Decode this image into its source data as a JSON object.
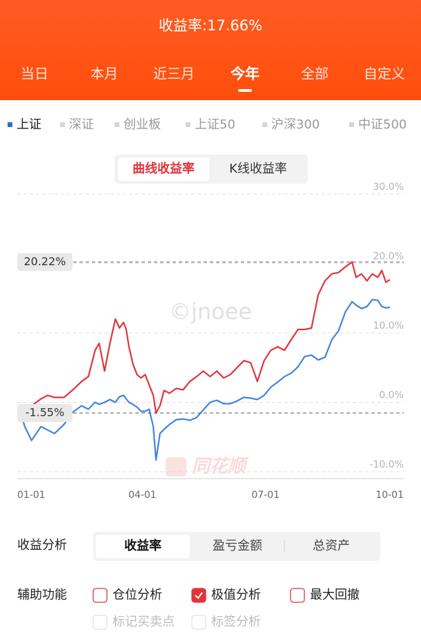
{
  "header": {
    "title": "收益率:17.66%",
    "tabs": [
      "当日",
      "本月",
      "近三月",
      "今年",
      "全部",
      "自定义"
    ],
    "active_tab": 3
  },
  "indices": {
    "items": [
      "上证",
      "深证",
      "创业板",
      "上证50",
      "沪深300",
      "中证500"
    ],
    "active": 0,
    "active_color": "#2b6fd8"
  },
  "chart_mode": {
    "options": [
      "曲线收益率",
      "K线收益率"
    ],
    "active": 0
  },
  "chart_data": {
    "type": "line",
    "x": [
      0,
      3,
      8,
      15,
      20,
      25,
      32,
      38,
      45,
      50,
      55,
      58,
      62,
      66,
      70,
      73,
      76,
      78,
      80,
      83,
      86,
      89,
      92,
      95,
      98,
      100,
      103,
      106,
      110,
      115,
      120,
      125,
      130,
      135,
      140,
      145,
      150,
      155,
      160,
      165,
      170,
      175,
      180,
      185,
      190,
      195,
      200,
      205,
      210,
      215,
      220,
      225,
      230,
      235,
      240,
      245,
      248,
      252,
      256,
      260,
      264,
      267,
      270,
      273
    ],
    "series": [
      {
        "color": "#e0333a",
        "values": [
          -0.8,
          -1.5,
          -0.5,
          0.5,
          1.0,
          0.7,
          0.7,
          1.7,
          3.0,
          3.7,
          7.5,
          8.5,
          4.5,
          8.5,
          12.0,
          10.7,
          11.5,
          10.5,
          8.0,
          5.5,
          4.0,
          3.5,
          4.0,
          2.5,
          1.0,
          -1.55,
          -0.5,
          1.7,
          1.3,
          2.0,
          1.8,
          3.0,
          3.7,
          4.5,
          3.7,
          4.5,
          3.5,
          4.0,
          5.0,
          6.0,
          5.7,
          3.0,
          6.0,
          7.5,
          8.0,
          7.5,
          9.0,
          10.5,
          10.5,
          10.7,
          15.5,
          17.5,
          18.5,
          18.7,
          19.5,
          20.22,
          18.0,
          18.5,
          17.5,
          18.5,
          18.0,
          19.0,
          17.3,
          17.66
        ]
      },
      {
        "color": "#3f83de",
        "values": [
          -1.5,
          -3.5,
          -5.5,
          -3.5,
          -4.0,
          -4.5,
          -3.2,
          -1.5,
          -0.5,
          -1.0,
          0.0,
          -0.3,
          0.0,
          0.4,
          0.0,
          0.8,
          1.0,
          0.5,
          0.0,
          -0.3,
          -0.7,
          -1.3,
          -1.3,
          -1.0,
          -3.5,
          -8.3,
          -4.5,
          -3.9,
          -3.2,
          -2.5,
          -2.4,
          -2.6,
          -2.2,
          -1.1,
          0.0,
          0.3,
          -0.2,
          -0.2,
          0.2,
          0.7,
          0.6,
          0.4,
          1.0,
          2.2,
          2.9,
          3.7,
          4.2,
          5.1,
          6.6,
          6.8,
          6.1,
          6.5,
          9.0,
          10.3,
          13.0,
          14.5,
          14.0,
          13.5,
          13.8,
          14.8,
          14.7,
          13.8,
          13.6,
          13.7
        ]
      }
    ],
    "xlim": [
      0,
      273
    ],
    "xticks": [
      {
        "value": 0,
        "label": "01-01"
      },
      {
        "value": 90,
        "label": "04-01"
      },
      {
        "value": 181,
        "label": "07-01"
      },
      {
        "value": 273,
        "label": "10-01"
      }
    ],
    "ylim": [
      -11,
      31
    ],
    "yticks": [
      {
        "value": 30,
        "label": "30.0%"
      },
      {
        "value": 20,
        "label": "20.0%"
      },
      {
        "value": 10,
        "label": "10.0%"
      },
      {
        "value": 0,
        "label": "0.0%"
      },
      {
        "value": -10,
        "label": "-10.0%"
      }
    ],
    "grid": true,
    "extremes": [
      {
        "value": 20.22,
        "label": "20.22%"
      },
      {
        "value": -1.55,
        "label": "-1.55%"
      }
    ],
    "watermarks": [
      "©jnoee",
      "同花顺"
    ]
  },
  "analysis": {
    "label": "收益分析",
    "options": [
      "收益率",
      "盈亏金额",
      "总资产"
    ],
    "active": 0
  },
  "tools": {
    "label": "辅助功能",
    "items": [
      {
        "label": "仓位分析",
        "checked": false,
        "disabled": false
      },
      {
        "label": "极值分析",
        "checked": true,
        "disabled": false
      },
      {
        "label": "最大回撤",
        "checked": false,
        "disabled": false
      },
      {
        "label": "标记买卖点",
        "checked": false,
        "disabled": true
      },
      {
        "label": "标签分析",
        "checked": false,
        "disabled": true
      }
    ]
  }
}
